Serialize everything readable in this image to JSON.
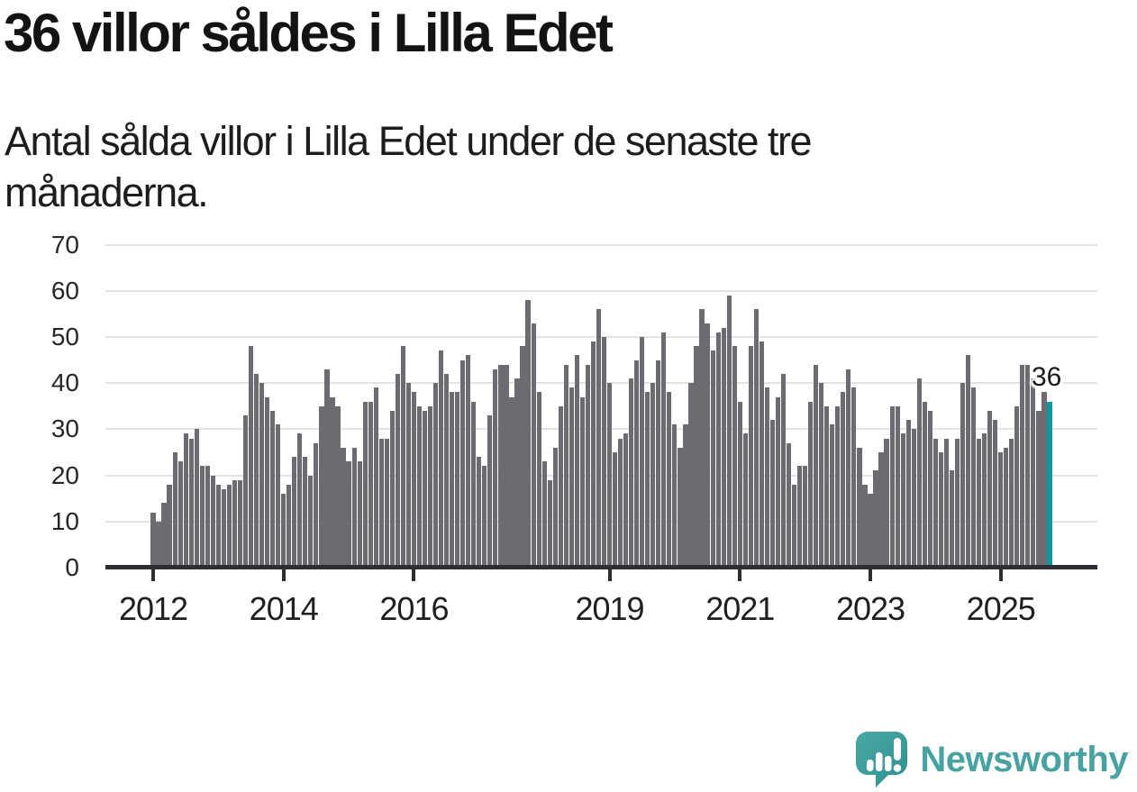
{
  "title": "36 villor såldes i Lilla Edet",
  "subtitle_line1": "Antal sålda villor i Lilla Edet under de senaste tre",
  "subtitle_line2": "månaderna.",
  "callout_label": "36",
  "logo": {
    "text": "Newsworthy",
    "icon": "newsworthy-bars-exclamation-icon"
  },
  "colors": {
    "bar": "#6b6b72",
    "highlight": "#0a989c",
    "axis": "#2e2e32",
    "gridline": "#e3e3e3",
    "logo_icon": "#3ba19e",
    "logo_text": "#47a2a1"
  },
  "chart_data": {
    "type": "bar",
    "title": "36 villor såldes i Lilla Edet",
    "subtitle": "Antal sålda villor i Lilla Edet under de senaste tre månaderna.",
    "x_start": "2012-01",
    "x_end": "2025-10",
    "ylim": [
      0,
      70
    ],
    "y_ticks": [
      0,
      10,
      20,
      30,
      40,
      50,
      60,
      70
    ],
    "grid": "horizontal",
    "legend": "none",
    "x_ticks": [
      {
        "label": "2012",
        "month_index": 0
      },
      {
        "label": "2014",
        "month_index": 24
      },
      {
        "label": "2016",
        "month_index": 48
      },
      {
        "label": "2019",
        "month_index": 84
      },
      {
        "label": "2021",
        "month_index": 108
      },
      {
        "label": "2023",
        "month_index": 132
      },
      {
        "label": "2025",
        "month_index": 156
      }
    ],
    "series": [
      {
        "year": 2012,
        "monthly": [
          12,
          10,
          14,
          18,
          25,
          23,
          29,
          28,
          30,
          22,
          22,
          20
        ]
      },
      {
        "year": 2013,
        "monthly": [
          18,
          17,
          18,
          19,
          19,
          33,
          48,
          42,
          40,
          37,
          34,
          31
        ]
      },
      {
        "year": 2014,
        "monthly": [
          16,
          18,
          24,
          29,
          24,
          20,
          27,
          35,
          43,
          37,
          35,
          26
        ]
      },
      {
        "year": 2015,
        "monthly": [
          23,
          26,
          23,
          36,
          36,
          39,
          28,
          28,
          34,
          42,
          48,
          40
        ]
      },
      {
        "year": 2016,
        "monthly": [
          38,
          35,
          34,
          35,
          40,
          47,
          42,
          38,
          38,
          45,
          46,
          36
        ]
      },
      {
        "year": 2017,
        "monthly": [
          24,
          22,
          33,
          43,
          44,
          44,
          37,
          41,
          48,
          58,
          53,
          38
        ]
      },
      {
        "year": 2018,
        "monthly": [
          23,
          19,
          26,
          35,
          44,
          39,
          46,
          37,
          44,
          49,
          56,
          50
        ]
      },
      {
        "year": 2019,
        "monthly": [
          40,
          25,
          28,
          29,
          41,
          45,
          50,
          38,
          40,
          45,
          51,
          38
        ]
      },
      {
        "year": 2020,
        "monthly": [
          31,
          26,
          31,
          40,
          48,
          56,
          53,
          47,
          51,
          52,
          59,
          48
        ]
      },
      {
        "year": 2021,
        "monthly": [
          36,
          29,
          48,
          56,
          49,
          39,
          32,
          37,
          42,
          27,
          18,
          22
        ]
      },
      {
        "year": 2022,
        "monthly": [
          22,
          36,
          44,
          40,
          35,
          31,
          35,
          38,
          43,
          39,
          26,
          18
        ]
      },
      {
        "year": 2023,
        "monthly": [
          16,
          21,
          25,
          28,
          35,
          35,
          29,
          32,
          30,
          41,
          36,
          34
        ]
      },
      {
        "year": 2024,
        "monthly": [
          28,
          25,
          28,
          21,
          28,
          40,
          46,
          39,
          28,
          29,
          34,
          32
        ]
      },
      {
        "year": 2025,
        "monthly": [
          25,
          26,
          28,
          35,
          44,
          44,
          41,
          34,
          38,
          36
        ]
      }
    ],
    "highlight_last_bar": {
      "value": 36,
      "label": "36"
    }
  }
}
